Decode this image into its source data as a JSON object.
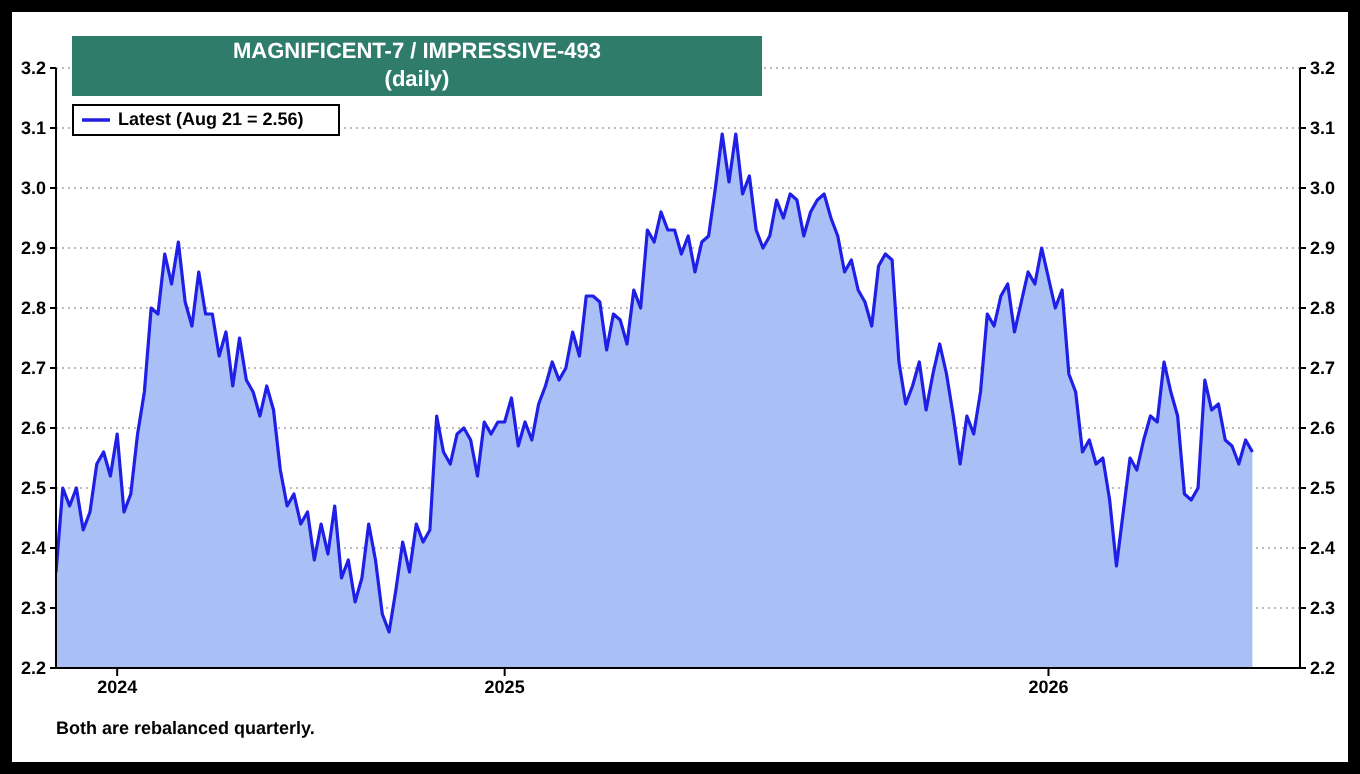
{
  "chart_data": {
    "type": "area",
    "title": "MAGNIFICENT-7 / IMPRESSIVE-493",
    "subtitle": "(daily)",
    "annotations": [
      "Both are rebalanced quarterly."
    ],
    "categories": [
      null,
      null,
      null,
      null,
      null,
      null,
      null,
      null,
      null,
      "2024",
      null,
      null,
      null,
      null,
      null,
      null,
      null,
      null,
      null,
      null,
      null,
      null,
      null,
      null,
      null,
      null,
      null,
      null,
      null,
      null,
      null,
      null,
      null,
      null,
      null,
      null,
      null,
      null,
      null,
      null,
      null,
      null,
      null,
      null,
      null,
      null,
      null,
      null,
      null,
      null,
      null,
      null,
      null,
      null,
      null,
      null,
      null,
      null,
      null,
      null,
      null,
      null,
      null,
      null,
      null,
      null,
      "2025",
      null,
      null,
      null,
      null,
      null,
      null,
      null,
      null,
      null,
      null,
      null,
      null,
      null,
      null,
      null,
      null,
      null,
      null,
      null,
      null,
      null,
      null,
      null,
      null,
      null,
      null,
      null,
      null,
      null,
      null,
      null,
      null,
      null,
      null,
      null,
      null,
      null,
      null,
      null,
      null,
      null,
      null,
      null,
      null,
      null,
      null,
      null,
      null,
      null,
      null,
      null,
      null,
      null,
      null,
      null,
      null,
      null,
      null,
      null,
      null,
      null,
      null,
      null,
      null,
      null,
      null,
      null,
      null,
      null,
      null,
      null,
      null,
      null,
      null,
      null,
      null,
      null,
      null,
      null,
      "2026",
      null,
      null,
      null,
      null,
      null,
      null,
      null,
      null,
      null,
      null,
      null,
      null,
      null,
      null,
      null,
      null,
      null,
      null,
      null,
      null,
      null,
      null,
      null,
      null,
      null,
      null,
      null,
      null,
      null,
      null,
      null,
      null,
      null,
      null,
      null,
      null,
      null
    ],
    "series": [
      {
        "name": "Latest (Aug 21 = 2.56)",
        "color": "#1f1fe6",
        "values": [
          2.36,
          2.5,
          2.47,
          2.5,
          2.43,
          2.46,
          2.54,
          2.56,
          2.52,
          2.59,
          2.46,
          2.49,
          2.59,
          2.66,
          2.8,
          2.79,
          2.89,
          2.84,
          2.91,
          2.81,
          2.77,
          2.86,
          2.79,
          2.79,
          2.72,
          2.76,
          2.67,
          2.75,
          2.68,
          2.66,
          2.62,
          2.67,
          2.63,
          2.53,
          2.47,
          2.49,
          2.44,
          2.46,
          2.38,
          2.44,
          2.39,
          2.47,
          2.35,
          2.38,
          2.31,
          2.35,
          2.44,
          2.38,
          2.29,
          2.26,
          2.33,
          2.41,
          2.36,
          2.44,
          2.41,
          2.43,
          2.62,
          2.56,
          2.54,
          2.59,
          2.6,
          2.58,
          2.52,
          2.61,
          2.59,
          2.61,
          2.61,
          2.65,
          2.57,
          2.61,
          2.58,
          2.64,
          2.67,
          2.71,
          2.68,
          2.7,
          2.76,
          2.72,
          2.82,
          2.82,
          2.81,
          2.73,
          2.79,
          2.78,
          2.74,
          2.83,
          2.8,
          2.93,
          2.91,
          2.96,
          2.93,
          2.93,
          2.89,
          2.92,
          2.86,
          2.91,
          2.92,
          3.0,
          3.09,
          3.01,
          3.09,
          2.99,
          3.02,
          2.93,
          2.9,
          2.92,
          2.98,
          2.95,
          2.99,
          2.98,
          2.92,
          2.96,
          2.98,
          2.99,
          2.95,
          2.92,
          2.86,
          2.88,
          2.83,
          2.81,
          2.77,
          2.87,
          2.89,
          2.88,
          2.71,
          2.64,
          2.67,
          2.71,
          2.63,
          2.69,
          2.74,
          2.69,
          2.62,
          2.54,
          2.62,
          2.59,
          2.66,
          2.79,
          2.77,
          2.82,
          2.84,
          2.76,
          2.81,
          2.86,
          2.84,
          2.9,
          2.85,
          2.8,
          2.83,
          2.69,
          2.66,
          2.56,
          2.58,
          2.54,
          2.55,
          2.48,
          2.37,
          2.46,
          2.55,
          2.53,
          2.58,
          2.62,
          2.61,
          2.71,
          2.66,
          2.62,
          2.49,
          2.48,
          2.5,
          2.68,
          2.63,
          2.64,
          2.58,
          2.57,
          2.54,
          2.58,
          2.56,
          null,
          null,
          null,
          null,
          null,
          null,
          null
        ]
      }
    ],
    "ylim": [
      2.2,
      3.2
    ],
    "yticks": [
      2.2,
      2.3,
      2.4,
      2.5,
      2.6,
      2.7,
      2.8,
      2.9,
      {
        "value": 3,
        "label": "3.0"
      },
      3.1,
      3.2
    ],
    "y2lim": [
      2.2,
      3.2
    ],
    "y2ticks": [
      2.2,
      2.3,
      2.4,
      2.5,
      2.6,
      2.7,
      2.8,
      2.9,
      {
        "value": 3,
        "label": "3.0"
      },
      3.1,
      3.2
    ],
    "grid": "y",
    "legend": "top left"
  }
}
